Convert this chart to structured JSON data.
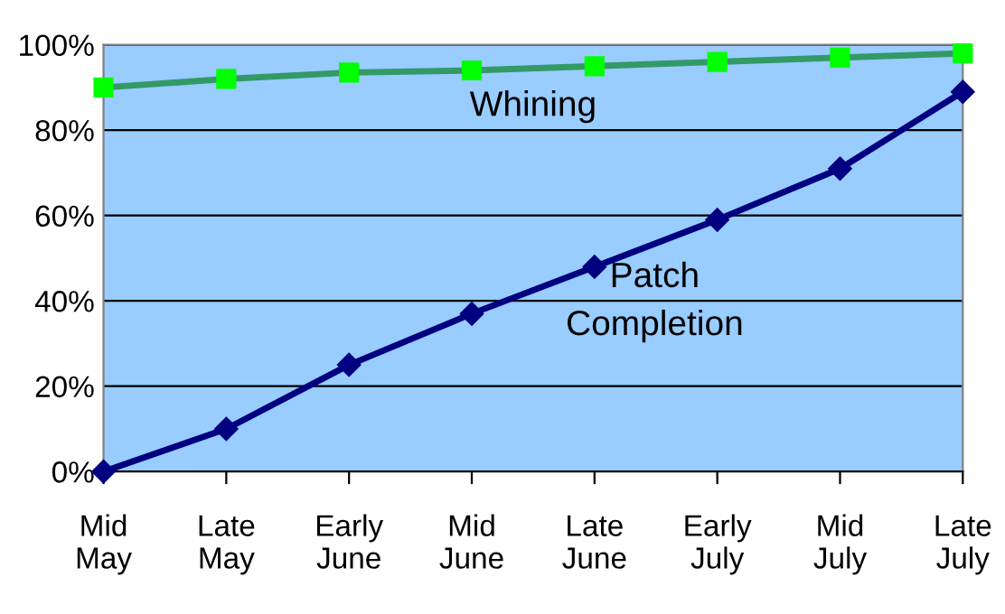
{
  "chart_data": {
    "type": "line",
    "categories": [
      "Mid\nMay",
      "Late\nMay",
      "Early\nJune",
      "Mid\nJune",
      "Late\nJune",
      "Early\nJuly",
      "Mid\nJuly",
      "Late\nJuly"
    ],
    "series": [
      {
        "name": "Whining",
        "color": "#339966",
        "marker": "square",
        "values": [
          90,
          92,
          93.5,
          94,
          95,
          96,
          97,
          98
        ]
      },
      {
        "name": "Patch Completion",
        "color": "#000080",
        "marker": "diamond",
        "values": [
          0,
          10,
          25,
          37,
          48,
          59,
          71,
          89
        ]
      }
    ],
    "ylim": [
      0,
      100
    ],
    "yticks": [
      {
        "value": 0,
        "label": "0%"
      },
      {
        "value": 20,
        "label": "20%"
      },
      {
        "value": 40,
        "label": "40%"
      },
      {
        "value": 60,
        "label": "60%"
      },
      {
        "value": 80,
        "label": "80%"
      },
      {
        "value": 100,
        "label": "100%"
      }
    ],
    "grid": "y",
    "legend": false,
    "line_style": "solid"
  }
}
